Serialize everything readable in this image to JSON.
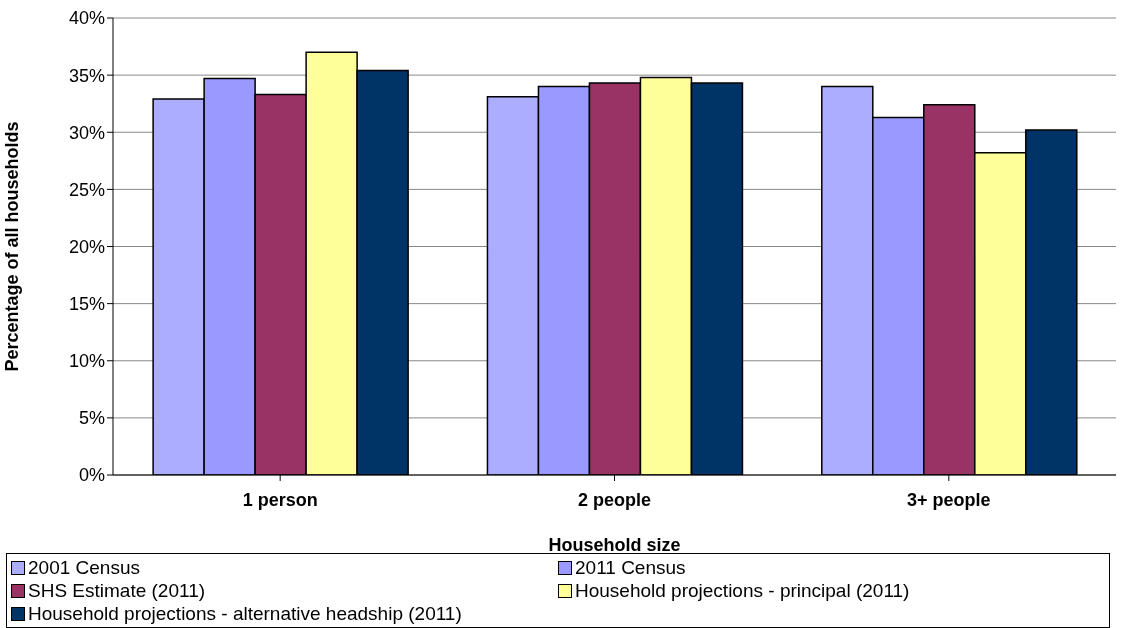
{
  "chart_data": {
    "type": "bar",
    "xlabel": "Household size",
    "ylabel": "Percentage of all households",
    "categories": [
      "1 person",
      "2 people",
      "3+ people"
    ],
    "series": [
      {
        "name": "2001 Census",
        "color": "#adadff",
        "values": [
          32.9,
          33.1,
          34.0
        ]
      },
      {
        "name": "2011 Census",
        "color": "#9999ff",
        "values": [
          34.7,
          34.0,
          31.3
        ]
      },
      {
        "name": "SHS Estimate (2011)",
        "color": "#993366",
        "values": [
          33.3,
          34.3,
          32.4
        ]
      },
      {
        "name": "Household projections - principal (2011)",
        "color": "#ffff99",
        "values": [
          37.0,
          34.8,
          28.2
        ]
      },
      {
        "name": "Household projections - alternative headship (2011)",
        "color": "#003366",
        "values": [
          35.4,
          34.3,
          30.2
        ]
      }
    ],
    "ylim": [
      0,
      40
    ],
    "yticks": [
      {
        "value": 0,
        "label": "0%"
      },
      {
        "value": 5,
        "label": "5%"
      },
      {
        "value": 10,
        "label": "10%"
      },
      {
        "value": 15,
        "label": "15%"
      },
      {
        "value": 20,
        "label": "20%"
      },
      {
        "value": 25,
        "label": "25%"
      },
      {
        "value": 30,
        "label": "30%"
      },
      {
        "value": 35,
        "label": "35%"
      },
      {
        "value": 40,
        "label": "40%"
      }
    ],
    "grid": "y",
    "legend": "bottom"
  }
}
